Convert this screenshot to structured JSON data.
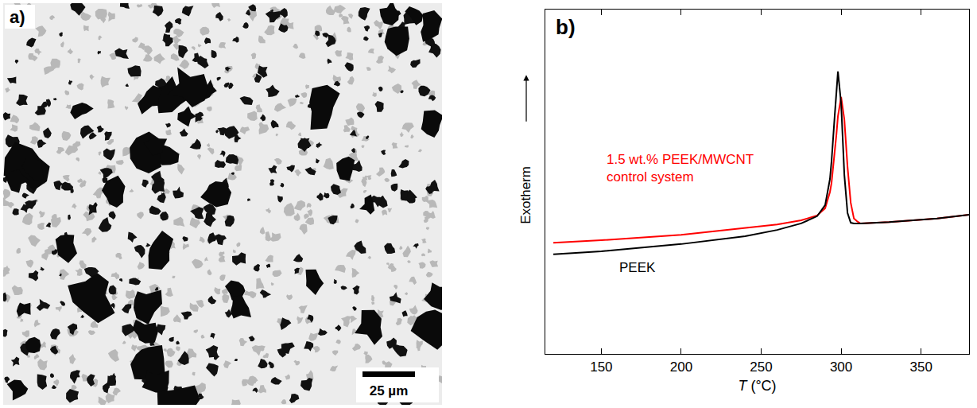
{
  "chart_data": {
    "type": "line",
    "title": "b)",
    "x_label": "T (°C)",
    "y_label": "Exotherm",
    "x": [
      120,
      150,
      200,
      240,
      260,
      275,
      285,
      290,
      293,
      294,
      296,
      297,
      298,
      300,
      302,
      304,
      306,
      308,
      310,
      312,
      330,
      360,
      380
    ],
    "series": [
      {
        "name": "PEEK",
        "color": "#000000",
        "values": [
          2.89,
          2.98,
          3.19,
          3.42,
          3.6,
          3.79,
          4.0,
          4.32,
          5.08,
          5.6,
          6.93,
          7.7,
          8.2,
          7.27,
          5.2,
          4.09,
          3.81,
          3.79,
          3.79,
          3.79,
          3.83,
          3.93,
          4.04
        ]
      },
      {
        "name": "1.5 wt.% PEEK/MWCNT control system",
        "color": "#ff0000",
        "values": [
          3.23,
          3.3,
          3.46,
          3.65,
          3.76,
          3.88,
          4.02,
          4.23,
          4.7,
          4.97,
          5.85,
          6.35,
          6.9,
          7.46,
          6.81,
          5.43,
          4.39,
          3.93,
          3.85,
          3.79,
          3.83,
          3.93,
          4.04
        ]
      }
    ],
    "xlim": [
      115,
      380
    ],
    "xticks": [
      150,
      200,
      250,
      300,
      350
    ],
    "ylim": [
      0,
      10
    ],
    "yticks": [],
    "tick_labels": "x",
    "grid": false
  },
  "image_panel": {
    "label": "a)",
    "scale_bar": "25 µm"
  }
}
